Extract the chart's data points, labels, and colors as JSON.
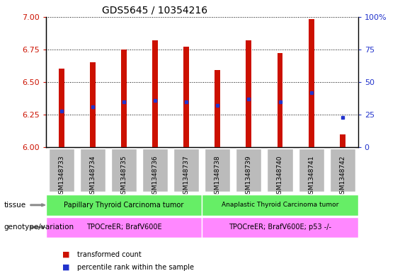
{
  "title": "GDS5645 / 10354216",
  "samples": [
    "GSM1348733",
    "GSM1348734",
    "GSM1348735",
    "GSM1348736",
    "GSM1348737",
    "GSM1348738",
    "GSM1348739",
    "GSM1348740",
    "GSM1348741",
    "GSM1348742"
  ],
  "transformed_count": [
    6.6,
    6.65,
    6.75,
    6.82,
    6.77,
    6.59,
    6.82,
    6.72,
    6.98,
    6.1
  ],
  "percentile_rank": [
    28,
    31,
    35,
    36,
    35,
    32,
    37,
    35,
    42,
    23
  ],
  "ylim_left": [
    6.0,
    7.0
  ],
  "ylim_right": [
    0,
    100
  ],
  "yticks_left": [
    6.0,
    6.25,
    6.5,
    6.75,
    7.0
  ],
  "yticks_right": [
    0,
    25,
    50,
    75,
    100
  ],
  "bar_color": "#cc1100",
  "percentile_color": "#2233cc",
  "bar_width": 0.18,
  "tissue_group1_label": "Papillary Thyroid Carcinoma tumor",
  "tissue_group2_label": "Anaplastic Thyroid Carcinoma tumor",
  "tissue_color": "#66ee66",
  "genotype_group1_label": "TPOCreER; BrafV600E",
  "genotype_group2_label": "TPOCreER; BrafV600E; p53 -/-",
  "genotype_color": "#ff88ff",
  "tissue_group1_samples": [
    0,
    1,
    2,
    3,
    4
  ],
  "tissue_group2_samples": [
    5,
    6,
    7,
    8,
    9
  ],
  "xtick_bg_color": "#bbbbbb",
  "legend_tc_label": "transformed count",
  "legend_pr_label": "percentile rank within the sample",
  "grid_color": "black"
}
